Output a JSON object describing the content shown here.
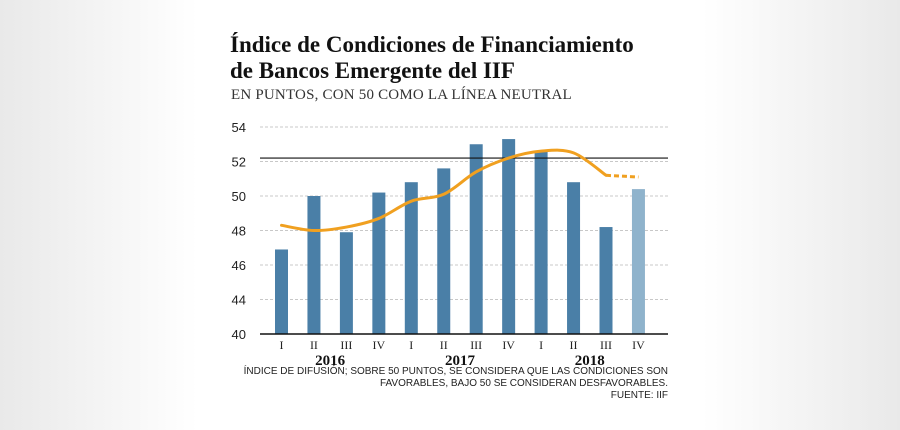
{
  "title_line1": "Índice de Condiciones de Financiamiento",
  "title_line2": "de Bancos Emergente del IIF",
  "subtitle": "EN PUNTOS, CON 50 COMO LA LÍNEA NEUTRAL",
  "footnote": {
    "line1": "ÍNDICE DE DIFUSIÓN; SOBRE 50 PUNTOS, SE CONSIDERA QUE LAS CONDICIONES SON",
    "line2": "FAVORABLES, BAJO 50 SE CONSIDERAN DESFAVORABLES.",
    "line3": "FUENTE: IIF"
  },
  "colors": {
    "bar": "#4a7fa7",
    "bar_light": "#8fb3cc",
    "line": "#f0a020",
    "grid": "#c8c8c8",
    "axis": "#111111"
  },
  "chart_data": {
    "type": "bar",
    "categories": [
      "I",
      "II",
      "III",
      "IV",
      "I",
      "II",
      "III",
      "IV",
      "I",
      "II",
      "III",
      "IV"
    ],
    "years": [
      {
        "label": "2016",
        "quarters": [
          0,
          1,
          2,
          3
        ]
      },
      {
        "label": "2017",
        "quarters": [
          4,
          5,
          6,
          7
        ]
      },
      {
        "label": "2018",
        "quarters": [
          8,
          9,
          10,
          11
        ]
      }
    ],
    "series": [
      {
        "type": "bar",
        "values": [
          46.9,
          50.0,
          47.9,
          50.2,
          50.8,
          51.6,
          53.0,
          53.3,
          52.6,
          50.8,
          48.2,
          50.4
        ],
        "highlight_last": true
      },
      {
        "type": "line",
        "values": [
          48.3,
          48.0,
          48.2,
          48.7,
          49.7,
          50.1,
          51.4,
          52.2,
          52.6,
          52.5,
          51.2,
          51.1
        ],
        "dashed_last_segment": true
      }
    ],
    "reference_line": 52.2,
    "yticks": [
      40,
      44,
      46,
      48,
      50,
      52,
      54
    ],
    "ylim": [
      40,
      54.5
    ],
    "grid": true
  }
}
